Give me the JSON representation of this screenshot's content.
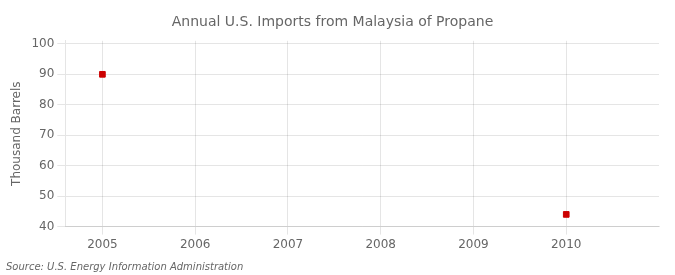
{
  "chart_data": {
    "type": "scatter",
    "title": "Annual U.S. Imports from Malaysia of Propane",
    "ylabel": "Thousand Barrels",
    "annotations": [
      "Source: U.S. Energy Information Administration"
    ],
    "x": [
      2005,
      2010
    ],
    "values": [
      90,
      44
    ],
    "color": "#CC0000",
    "marker": "square",
    "xlim": [
      2004.6,
      2011.0
    ],
    "ylim": [
      40,
      101
    ],
    "xticks": [
      2005,
      2006,
      2007,
      2008,
      2009,
      2010
    ],
    "yticks": [
      40,
      50,
      60,
      70,
      80,
      90,
      100
    ],
    "grid": true
  }
}
